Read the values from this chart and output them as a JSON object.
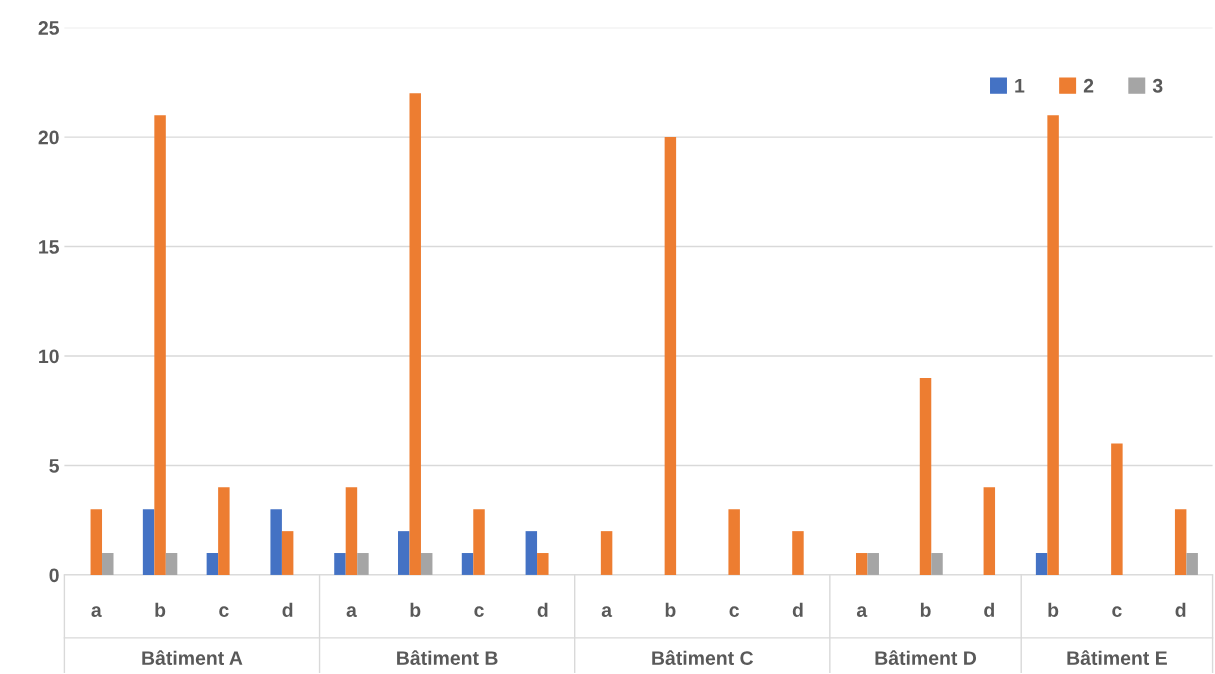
{
  "chart_data": {
    "type": "bar",
    "categories": [
      "a",
      "b",
      "c",
      "d",
      "a",
      "b",
      "c",
      "d",
      "a",
      "b",
      "c",
      "d",
      "a",
      "b",
      "d",
      "b",
      "c",
      "d"
    ],
    "series": [
      {
        "name": "1",
        "color": "#4472c4",
        "values": [
          0,
          3,
          1,
          3,
          1,
          2,
          1,
          2,
          0,
          0,
          0,
          0,
          0,
          0,
          0,
          1,
          0,
          0
        ]
      },
      {
        "name": "2",
        "color": "#ed7d31",
        "values": [
          3,
          21,
          4,
          2,
          4,
          22,
          3,
          1,
          2,
          20,
          3,
          2,
          1,
          9,
          4,
          21,
          6,
          3
        ]
      },
      {
        "name": "3",
        "color": "#a5a5a5",
        "values": [
          1,
          1,
          0,
          0,
          1,
          1,
          0,
          0,
          0,
          0,
          0,
          0,
          1,
          1,
          0,
          0,
          0,
          1
        ]
      }
    ],
    "annotations": [
      "Bâtiment A",
      "Bâtiment B",
      "Bâtiment C",
      "Bâtiment D",
      "Bâtiment E"
    ],
    "ylim": [
      0,
      25
    ],
    "yticks": [
      0,
      5,
      10,
      15,
      20,
      25
    ],
    "grid": "y",
    "legend": "top right"
  }
}
